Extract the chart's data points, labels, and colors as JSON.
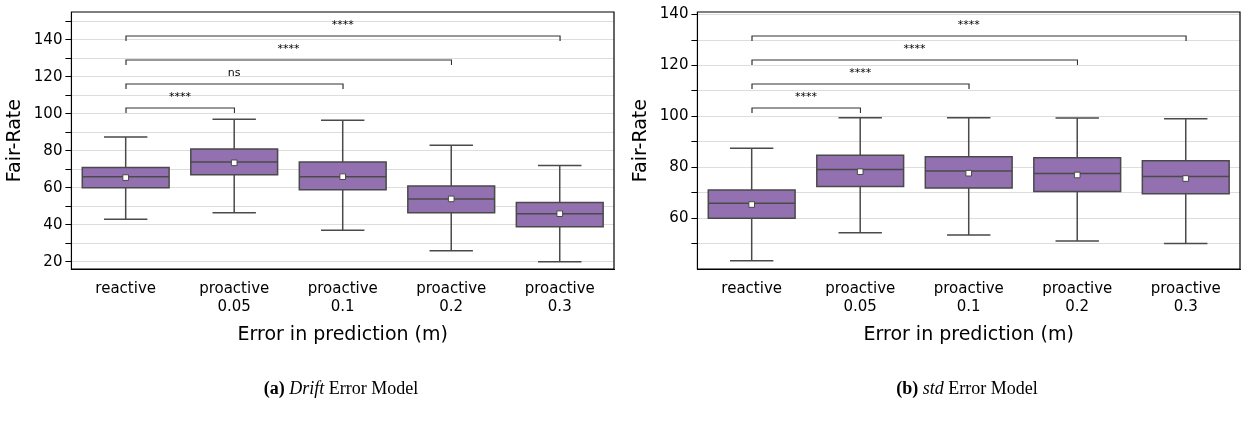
{
  "chart_data": [
    {
      "type": "box",
      "title": "(a) Drift Error Model",
      "xlabel": "Error in prediction (m)",
      "ylabel": "Fair-Rate",
      "categories": [
        "reactive",
        "proactive 0.05",
        "proactive 0.1",
        "proactive 0.2",
        "proactive 0.3"
      ],
      "color": "#9370b0",
      "boxes": [
        {
          "low": 43,
          "q1": 60,
          "median": 66,
          "q3": 71,
          "high": 87.5,
          "mean": 65.5
        },
        {
          "low": 46.5,
          "q1": 67,
          "median": 74,
          "q3": 81,
          "high": 97,
          "mean": 73.5
        },
        {
          "low": 37,
          "q1": 59,
          "median": 66,
          "q3": 74,
          "high": 96.5,
          "mean": 66
        },
        {
          "low": 26,
          "q1": 46.5,
          "median": 54,
          "q3": 61,
          "high": 83,
          "mean": 54
        },
        {
          "low": 20,
          "q1": 39,
          "median": 46,
          "q3": 52,
          "high": 72,
          "mean": 46
        }
      ],
      "ylim": [
        16,
        155
      ],
      "yticks": [
        20,
        {
          "value": 30,
          "label": null
        },
        40,
        {
          "value": 50,
          "label": null
        },
        60,
        {
          "value": 70,
          "label": null
        },
        80,
        {
          "value": 90,
          "label": null
        },
        100,
        {
          "value": 110,
          "label": null
        },
        120,
        {
          "value": 130,
          "label": null
        },
        140,
        {
          "value": 150,
          "label": null
        }
      ],
      "grid": true,
      "annotations": [
        "****",
        "ns",
        "****",
        "****"
      ]
    },
    {
      "type": "box",
      "title": "(b) std Error Model",
      "xlabel": "Error in prediction (m)",
      "ylabel": "Fair-Rate",
      "categories": [
        "reactive",
        "proactive 0.05",
        "proactive 0.1",
        "proactive 0.2",
        "proactive 0.3"
      ],
      "color": "#9370b0",
      "boxes": [
        {
          "low": 43.3,
          "q1": 60,
          "median": 65.9,
          "q3": 71.1,
          "high": 87.5,
          "mean": 65.4
        },
        {
          "low": 54.3,
          "q1": 72.5,
          "median": 79.2,
          "q3": 84.7,
          "high": 99.5,
          "mean": 78.3
        },
        {
          "low": 53.4,
          "q1": 71.9,
          "median": 78.6,
          "q3": 84.2,
          "high": 99.5,
          "mean": 77.7
        },
        {
          "low": 51.1,
          "q1": 70.5,
          "median": 77.6,
          "q3": 83.8,
          "high": 99.4,
          "mean": 77
        },
        {
          "low": 50.1,
          "q1": 69.6,
          "median": 76.4,
          "q3": 82.6,
          "high": 99.1,
          "mean": 75.6
        }
      ],
      "ylim": [
        40,
        141
      ],
      "yticks": [
        {
          "value": 50,
          "label": null
        },
        60,
        {
          "value": 70,
          "label": null
        },
        80,
        {
          "value": 90,
          "label": null
        },
        100,
        {
          "value": 110,
          "label": null
        },
        120,
        {
          "value": 130,
          "label": null
        },
        140
      ],
      "grid": true,
      "annotations": [
        "****",
        "****",
        "****",
        "****"
      ]
    }
  ]
}
